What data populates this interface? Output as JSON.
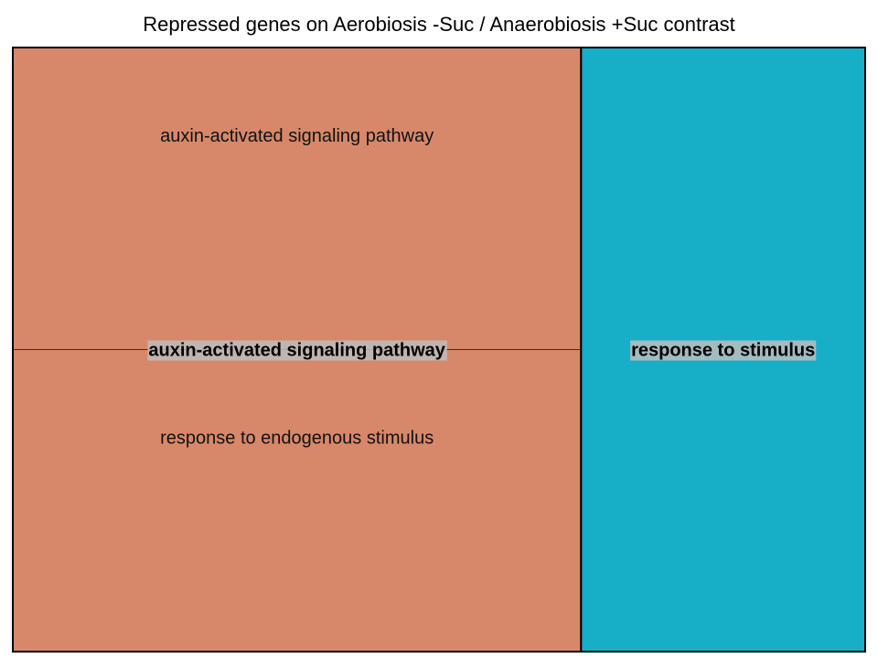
{
  "chart_data": {
    "type": "treemap",
    "title": "Repressed genes on Aerobiosis -Suc / Anaerobiosis +Suc contrast",
    "groups": [
      {
        "name": "auxin-activated signaling pathway",
        "color": "#d8886a",
        "value": 2,
        "children": [
          {
            "name": "auxin-activated signaling pathway",
            "value": 1
          },
          {
            "name": "response to endogenous stimulus",
            "value": 1
          }
        ]
      },
      {
        "name": "response to stimulus",
        "color": "#17aec8",
        "value": 1,
        "children": [
          {
            "name": "response to stimulus",
            "value": 1
          }
        ]
      }
    ]
  }
}
